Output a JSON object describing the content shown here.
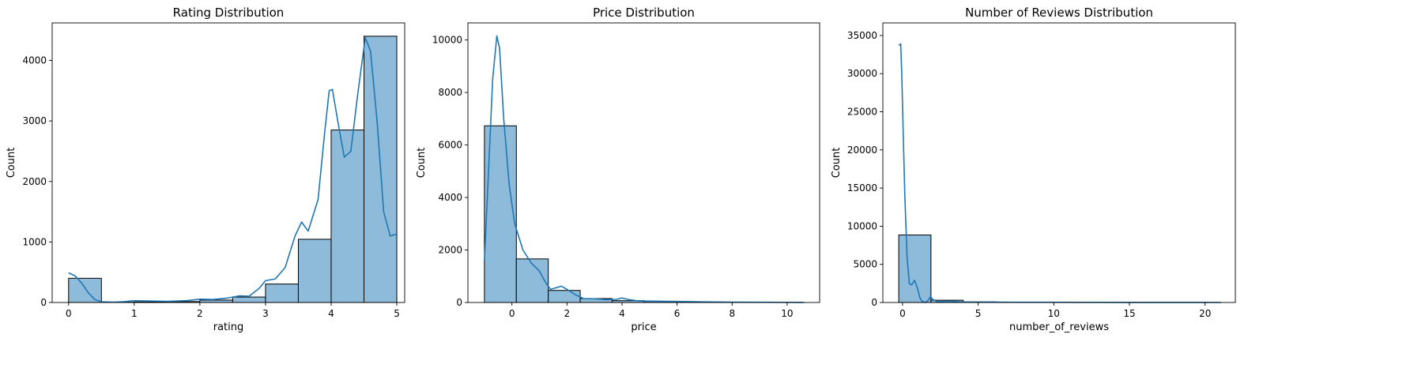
{
  "chart_data": [
    {
      "type": "bar",
      "title": "Rating Distribution",
      "xlabel": "rating",
      "ylabel": "Count",
      "xlim": [
        -0.25,
        5.12
      ],
      "ylim": [
        0,
        4620
      ],
      "xticks": [
        0,
        1,
        2,
        3,
        4,
        5
      ],
      "yticks": [
        0,
        1000,
        2000,
        3000,
        4000
      ],
      "bins": [
        [
          0,
          0.5,
          400
        ],
        [
          0.5,
          1,
          5
        ],
        [
          1,
          1.5,
          10
        ],
        [
          1.5,
          2,
          15
        ],
        [
          2,
          2.5,
          40
        ],
        [
          2.5,
          3,
          90
        ],
        [
          3,
          3.5,
          305
        ],
        [
          3.5,
          4,
          1045
        ],
        [
          4,
          4.5,
          2850
        ],
        [
          4.5,
          5,
          4400
        ]
      ],
      "kde": [
        [
          0,
          490
        ],
        [
          0.1,
          440
        ],
        [
          0.2,
          320
        ],
        [
          0.3,
          160
        ],
        [
          0.4,
          50
        ],
        [
          0.5,
          10
        ],
        [
          0.7,
          5
        ],
        [
          0.85,
          15
        ],
        [
          1.0,
          30
        ],
        [
          1.2,
          25
        ],
        [
          1.5,
          20
        ],
        [
          1.8,
          30
        ],
        [
          2.0,
          55
        ],
        [
          2.2,
          50
        ],
        [
          2.4,
          70
        ],
        [
          2.6,
          110
        ],
        [
          2.75,
          105
        ],
        [
          2.9,
          230
        ],
        [
          3.0,
          360
        ],
        [
          3.15,
          390
        ],
        [
          3.3,
          580
        ],
        [
          3.45,
          1100
        ],
        [
          3.55,
          1330
        ],
        [
          3.65,
          1180
        ],
        [
          3.8,
          1700
        ],
        [
          3.9,
          2800
        ],
        [
          3.97,
          3500
        ],
        [
          4.02,
          3520
        ],
        [
          4.1,
          3000
        ],
        [
          4.2,
          2400
        ],
        [
          4.3,
          2500
        ],
        [
          4.4,
          3400
        ],
        [
          4.52,
          4380
        ],
        [
          4.6,
          4150
        ],
        [
          4.7,
          3000
        ],
        [
          4.8,
          1500
        ],
        [
          4.9,
          1100
        ],
        [
          5.0,
          1130
        ]
      ]
    },
    {
      "type": "bar",
      "title": "Price Distribution",
      "xlabel": "price",
      "ylabel": "Count",
      "xlim": [
        -1.6,
        11.18
      ],
      "ylim": [
        0,
        10650
      ],
      "xticks": [
        0,
        2,
        4,
        6,
        8,
        10
      ],
      "yticks": [
        0,
        2000,
        4000,
        6000,
        8000,
        10000
      ],
      "bins": [
        [
          -1.0,
          0.16,
          6730
        ],
        [
          0.16,
          1.32,
          1660
        ],
        [
          1.32,
          2.48,
          460
        ],
        [
          2.48,
          3.64,
          150
        ],
        [
          3.64,
          4.8,
          70
        ],
        [
          4.8,
          5.96,
          40
        ],
        [
          5.96,
          7.12,
          20
        ],
        [
          7.12,
          8.28,
          10
        ],
        [
          8.28,
          9.44,
          5
        ],
        [
          9.44,
          10.6,
          5
        ]
      ],
      "kde": [
        [
          -1.0,
          1600
        ],
        [
          -0.85,
          5000
        ],
        [
          -0.7,
          8500
        ],
        [
          -0.55,
          10150
        ],
        [
          -0.45,
          9700
        ],
        [
          -0.3,
          7000
        ],
        [
          -0.1,
          4500
        ],
        [
          0.1,
          3000
        ],
        [
          0.4,
          2000
        ],
        [
          0.7,
          1500
        ],
        [
          1.0,
          1200
        ],
        [
          1.2,
          800
        ],
        [
          1.4,
          500
        ],
        [
          1.6,
          560
        ],
        [
          1.8,
          620
        ],
        [
          2.0,
          500
        ],
        [
          2.3,
          300
        ],
        [
          2.6,
          150
        ],
        [
          3.0,
          140
        ],
        [
          3.4,
          110
        ],
        [
          3.8,
          120
        ],
        [
          4.0,
          170
        ],
        [
          4.2,
          120
        ],
        [
          4.6,
          60
        ],
        [
          5.2,
          50
        ],
        [
          6.0,
          40
        ],
        [
          7.0,
          25
        ],
        [
          8.0,
          15
        ],
        [
          9.0,
          10
        ],
        [
          10.0,
          5
        ],
        [
          10.6,
          3
        ]
      ]
    },
    {
      "type": "bar",
      "title": "Number of Reviews Distribution",
      "xlabel": "number_of_reviews",
      "ylabel": "Count",
      "xlim": [
        -1.3,
        22.0
      ],
      "ylim": [
        0,
        36650
      ],
      "xticks": [
        0,
        5,
        10,
        15,
        20
      ],
      "yticks": [
        0,
        5000,
        10000,
        15000,
        20000,
        25000,
        30000,
        35000
      ],
      "bins": [
        [
          -0.25,
          1.88,
          8850
        ],
        [
          1.88,
          4.01,
          300
        ],
        [
          4.01,
          6.14,
          80
        ],
        [
          6.14,
          8.27,
          40
        ],
        [
          8.27,
          10.4,
          30
        ],
        [
          10.4,
          12.53,
          15
        ],
        [
          12.53,
          14.66,
          10
        ],
        [
          14.66,
          16.79,
          8
        ],
        [
          16.79,
          18.92,
          5
        ],
        [
          18.92,
          21.05,
          5
        ]
      ],
      "kde": [
        [
          -0.25,
          33700
        ],
        [
          -0.12,
          33900
        ],
        [
          -0.05,
          30000
        ],
        [
          0.05,
          22000
        ],
        [
          0.15,
          14000
        ],
        [
          0.3,
          6000
        ],
        [
          0.45,
          2500
        ],
        [
          0.6,
          2300
        ],
        [
          0.8,
          2900
        ],
        [
          1.0,
          1800
        ],
        [
          1.15,
          600
        ],
        [
          1.3,
          150
        ],
        [
          1.5,
          0
        ],
        [
          1.7,
          300
        ],
        [
          1.85,
          800
        ],
        [
          2.0,
          400
        ],
        [
          2.3,
          100
        ],
        [
          3.0,
          180
        ],
        [
          3.5,
          120
        ],
        [
          4.0,
          60
        ],
        [
          5.0,
          40
        ],
        [
          6.0,
          60
        ],
        [
          7.0,
          30
        ],
        [
          9.0,
          30
        ],
        [
          12.0,
          20
        ],
        [
          15.0,
          15
        ],
        [
          18.0,
          10
        ],
        [
          21.05,
          5
        ]
      ]
    }
  ]
}
